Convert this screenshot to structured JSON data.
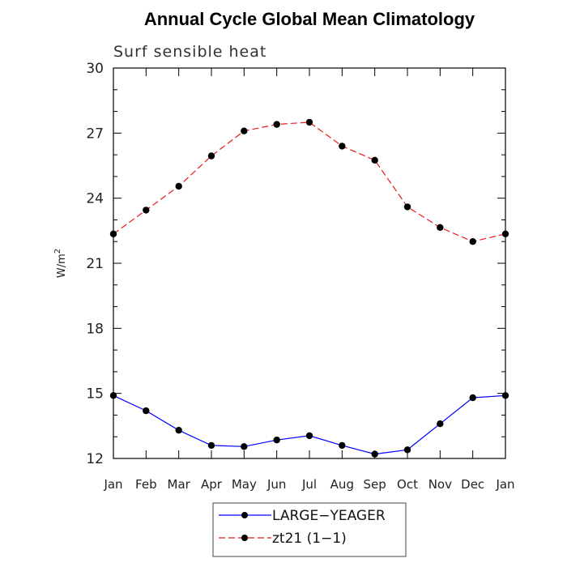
{
  "chart_data": {
    "type": "line",
    "title": "Annual Cycle Global Mean Climatology",
    "subtitle": "Surf sensible heat",
    "xlabel": "",
    "ylabel": "W/m",
    "ylabel_superscript": "2",
    "categories": [
      "Jan",
      "Feb",
      "Mar",
      "Apr",
      "May",
      "Jun",
      "Jul",
      "Aug",
      "Sep",
      "Oct",
      "Nov",
      "Dec",
      "Jan"
    ],
    "ylim": [
      12,
      30
    ],
    "yticks": [
      12,
      15,
      18,
      21,
      24,
      27,
      30
    ],
    "series": [
      {
        "name": "LARGE−YEAGER",
        "color": "#0000ff",
        "dashed": false,
        "values": [
          14.9,
          14.2,
          13.3,
          12.6,
          12.55,
          12.85,
          13.05,
          12.6,
          12.2,
          12.4,
          13.6,
          14.8,
          14.9
        ]
      },
      {
        "name": "zt21 (1−1)",
        "color": "#e41a1c",
        "dashed": true,
        "values": [
          22.35,
          23.45,
          24.55,
          25.95,
          27.1,
          27.4,
          27.5,
          26.4,
          25.75,
          23.6,
          22.65,
          22.0,
          22.35
        ]
      }
    ],
    "grid": false,
    "legend_position": "bottom-center"
  }
}
